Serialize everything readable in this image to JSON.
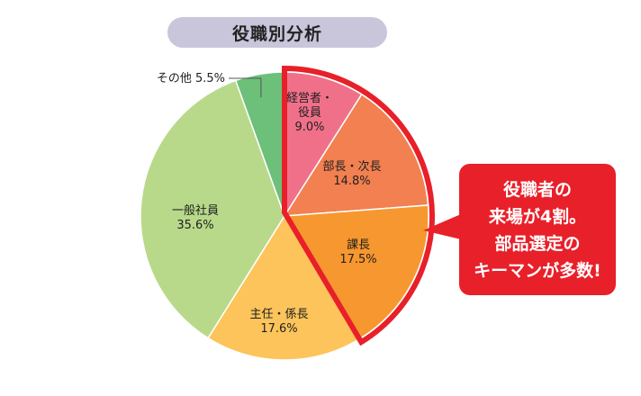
{
  "chart_data": {
    "type": "pie",
    "title": "役職別分析",
    "slices": [
      {
        "name": "経営者・役員",
        "label_lines": [
          "経営者・",
          "役員"
        ],
        "value": 9.0,
        "value_label": "9.0%",
        "color": "#f0708a"
      },
      {
        "name": "部長・次長",
        "label_lines": [
          "部長・次長"
        ],
        "value": 14.8,
        "value_label": "14.8%",
        "color": "#f28050"
      },
      {
        "name": "課長",
        "label_lines": [
          "課長"
        ],
        "value": 17.5,
        "value_label": "17.5%",
        "color": "#f7972f"
      },
      {
        "name": "主任・係長",
        "label_lines": [
          "主任・係長"
        ],
        "value": 17.6,
        "value_label": "17.6%",
        "color": "#fcc45a"
      },
      {
        "name": "一般社員",
        "label_lines": [
          "一般社員"
        ],
        "value": 35.6,
        "value_label": "35.6%",
        "color": "#b8d98a"
      },
      {
        "name": "その他",
        "label_lines": [
          "その他 5.5%"
        ],
        "value": 5.5,
        "value_label": "",
        "color": "#6cc07a"
      }
    ],
    "highlight": {
      "slices": [
        "経営者・役員",
        "部長・次長",
        "課長"
      ],
      "color": "#e8202a"
    },
    "callout": {
      "lines": [
        "役職者の",
        "来場が4割。",
        "部品選定の",
        "キーマンが多数!"
      ],
      "color": "#e8202a"
    }
  }
}
